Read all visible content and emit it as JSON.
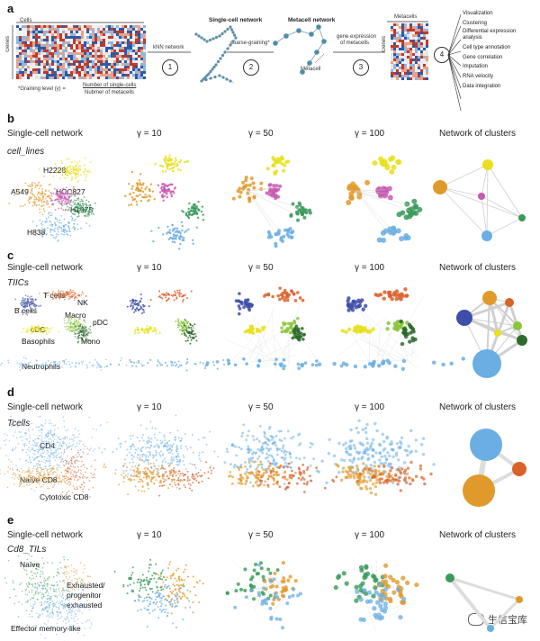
{
  "panel_a": {
    "letter": "a",
    "cells_label": "Cells",
    "genes_label": "Genes",
    "graining_prefix": "*Graining level (γ) =",
    "graining_numerator": "Number of single-cells",
    "graining_denominator": "Nubmer of metacells",
    "knn_label": "kNN network",
    "step1": "1",
    "single_cell_network_title": "Single-cell network",
    "coarse_graining_label": "coarse-graining*",
    "step2": "2",
    "metacell_network_title": "Metacell network",
    "metacell_label": "Metacell",
    "gene_expr_label_1": "gene expression",
    "gene_expr_label_2": "of metacells",
    "step3": "3",
    "metacells_label": "Metacells",
    "genes_label_2": "Genes",
    "step4": "4",
    "uses": [
      "Visualization",
      "Clustering",
      "Differential expression",
      "analysis",
      "Cell type annotation",
      "Gene correlation",
      "Imputation",
      "RNA velocity",
      "Data integration"
    ]
  },
  "column_headers": [
    "Single-cell network",
    "γ = 10",
    "γ = 50",
    "γ = 100",
    "Network of clusters"
  ],
  "panel_b": {
    "letter": "b",
    "dataset": "cell_lines",
    "clusters": [
      "H2228",
      "A549",
      "HCC827",
      "H1975",
      "H838"
    ]
  },
  "panel_c": {
    "letter": "c",
    "dataset": "TIICs",
    "clusters": [
      "T cells",
      "NK",
      "B cells",
      "Macro",
      "pDC",
      "cDC",
      "Basophils",
      "Mono",
      "Neutrophils"
    ]
  },
  "panel_d": {
    "letter": "d",
    "dataset": "Tcells",
    "clusters": [
      "CD4",
      "Naïve CD8",
      "Cytotoxic CD8"
    ]
  },
  "panel_e": {
    "letter": "e",
    "dataset": "Cd8_TILs",
    "clusters": [
      "Naïve",
      "Exhausted/",
      "progenitor",
      "exhausted",
      "Effector memory-like"
    ]
  },
  "watermark": "生信宝库",
  "colors": {
    "blue": "#6aaee3",
    "orange": "#e09a2c",
    "pink": "#c85ab0",
    "green": "#3a9a5a",
    "yellow": "#e8e020",
    "red_orange": "#d9622b",
    "dark_blue": "#3d4fa8",
    "light_green": "#8ac63e",
    "dark_green": "#2d6a2d",
    "gray_edge": "#d0d0d0"
  }
}
